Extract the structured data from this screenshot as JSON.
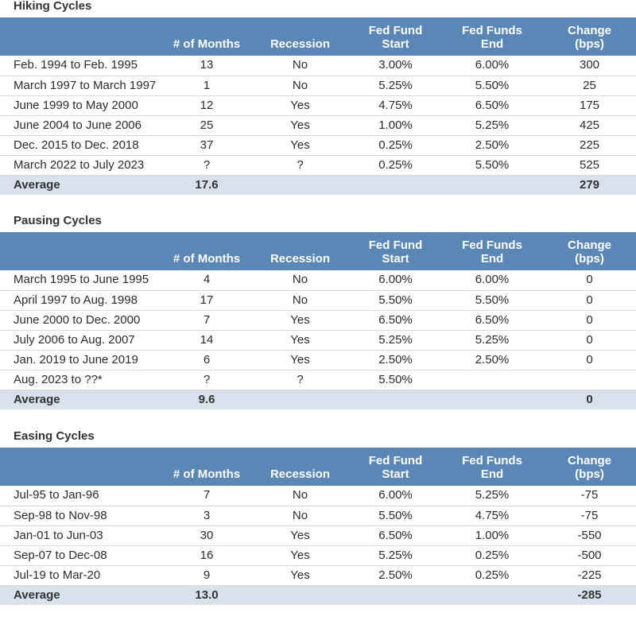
{
  "columns": [
    "",
    "# of Months",
    "Recession",
    "Fed Fund\nStart",
    "Fed Funds\nEnd",
    "Change\n(bps)"
  ],
  "sections": [
    {
      "title": "Hiking Cycles",
      "rows": [
        [
          "Feb. 1994 to Feb. 1995",
          "13",
          "No",
          "3.00%",
          "6.00%",
          "300"
        ],
        [
          "March 1997 to March 1997",
          "1",
          "No",
          "5.25%",
          "5.50%",
          "25"
        ],
        [
          "June 1999 to May 2000",
          "12",
          "Yes",
          "4.75%",
          "6.50%",
          "175"
        ],
        [
          "June 2004 to June 2006",
          "25",
          "Yes",
          "1.00%",
          "5.25%",
          "425"
        ],
        [
          "Dec. 2015 to Dec. 2018",
          "37",
          "Yes",
          "0.25%",
          "2.50%",
          "225"
        ],
        [
          "March 2022 to July 2023",
          "?",
          "?",
          "0.25%",
          "5.50%",
          "525"
        ]
      ],
      "average": [
        "Average",
        "17.6",
        "",
        "",
        "",
        "279"
      ]
    },
    {
      "title": "Pausing Cycles",
      "rows": [
        [
          "March 1995 to June 1995",
          "4",
          "No",
          "6.00%",
          "6.00%",
          "0"
        ],
        [
          "April 1997 to Aug. 1998",
          "17",
          "No",
          "5.50%",
          "5.50%",
          "0"
        ],
        [
          "June 2000 to Dec. 2000",
          "7",
          "Yes",
          "6.50%",
          "6.50%",
          "0"
        ],
        [
          "July 2006 to Aug. 2007",
          "14",
          "Yes",
          "5.25%",
          "5.25%",
          "0"
        ],
        [
          "Jan. 2019 to June 2019",
          "6",
          "Yes",
          "2.50%",
          "2.50%",
          "0"
        ],
        [
          "Aug. 2023 to ??*",
          "?",
          "?",
          "5.50%",
          "",
          ""
        ]
      ],
      "average": [
        "Average",
        "9.6",
        "",
        "",
        "",
        "0"
      ]
    },
    {
      "title": "Easing Cycles",
      "rows": [
        [
          "Jul-95 to Jan-96",
          "7",
          "No",
          "6.00%",
          "5.25%",
          "-75"
        ],
        [
          "Sep-98 to Nov-98",
          "3",
          "No",
          "5.50%",
          "4.75%",
          "-75"
        ],
        [
          "Jan-01 to Jun-03",
          "30",
          "Yes",
          "6.50%",
          "1.00%",
          "-550"
        ],
        [
          "Sep-07 to Dec-08",
          "16",
          "Yes",
          "5.25%",
          "0.25%",
          "-500"
        ],
        [
          "Jul-19 to Mar-20",
          "9",
          "Yes",
          "2.50%",
          "0.25%",
          "-225"
        ]
      ],
      "average": [
        "Average",
        "13.0",
        "",
        "",
        "",
        "-285"
      ]
    }
  ]
}
